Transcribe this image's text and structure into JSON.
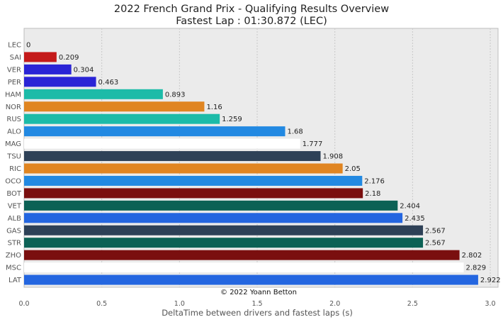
{
  "chart_data": {
    "type": "bar",
    "orientation": "horizontal",
    "title": "2022 French Grand Prix - Qualifying Results Overview",
    "subtitle": "Fastest Lap : 01:30.872 (LEC)",
    "xlabel": "DeltaTime between drivers and fastest laps (s)",
    "ylabel": "",
    "xlim": [
      0,
      3.05
    ],
    "xticks": [
      "0.0",
      "0.5",
      "1.0",
      "1.5",
      "2.0",
      "2.5",
      "3.0"
    ],
    "grid": true,
    "annotation": "© 2022 Yoann Betton",
    "categories": [
      "LEC",
      "SAI",
      "VER",
      "PER",
      "HAM",
      "NOR",
      "RUS",
      "ALO",
      "MAG",
      "TSU",
      "RIC",
      "OCO",
      "BOT",
      "VET",
      "ALB",
      "GAS",
      "STR",
      "ZHO",
      "MSC",
      "LAT"
    ],
    "values": [
      0,
      0.209,
      0.304,
      0.463,
      0.893,
      1.16,
      1.259,
      1.68,
      1.777,
      1.908,
      2.05,
      2.176,
      2.18,
      2.404,
      2.435,
      2.567,
      2.567,
      2.802,
      2.829,
      2.922
    ],
    "labels": [
      "0",
      "0.209",
      "0.304",
      "0.463",
      "0.893",
      "1.16",
      "1.259",
      "1.68",
      "1.777",
      "1.908",
      "2.05",
      "2.176",
      "2.18",
      "2.404",
      "2.435",
      "2.567",
      "2.567",
      "2.802",
      "2.829",
      "2.922"
    ],
    "colors": [
      "#dc0000",
      "#c41a1a",
      "#2a24d6",
      "#2a24d6",
      "#1cbba8",
      "#e08522",
      "#1cbba8",
      "#2289e2",
      "#ffffff",
      "#2e4157",
      "#e08522",
      "#2289e2",
      "#7a0f0f",
      "#0c6155",
      "#2466e0",
      "#2e4157",
      "#0c6155",
      "#7a0f0f",
      "#ffffff",
      "#2466e0"
    ]
  }
}
